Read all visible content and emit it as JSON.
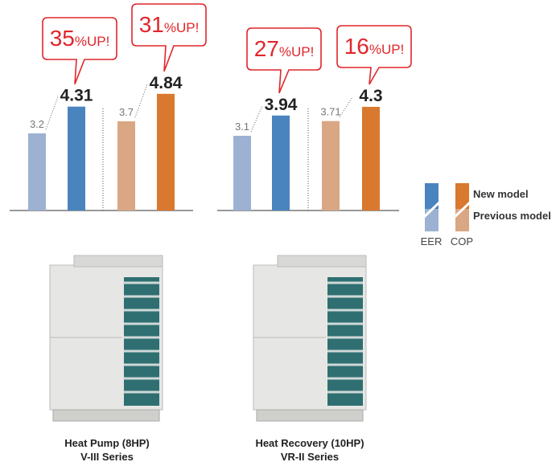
{
  "legend": {
    "items": [
      {
        "name": "New model",
        "colors": [
          "#4a84bf",
          "#d9782f"
        ]
      },
      {
        "name": "Previous model",
        "colors": [
          "#9db1d2",
          "#d9a783"
        ]
      }
    ],
    "categories": [
      "EER",
      "COP"
    ]
  },
  "chart_data": [
    {
      "type": "bar",
      "ylim": [
        0,
        5
      ],
      "caption": [
        "Heat Pump (8HP)",
        "V-III Series"
      ],
      "groups": [
        {
          "values": [
            3.2,
            4.31
          ],
          "callout": "35%UP!"
        },
        {
          "values": [
            3.7,
            4.84
          ],
          "callout": "31%UP!"
        }
      ]
    },
    {
      "type": "bar",
      "ylim": [
        0,
        5
      ],
      "caption": [
        "Heat Recovery (10HP)",
        "VR-II Series"
      ],
      "groups": [
        {
          "values": [
            3.1,
            3.94
          ],
          "callout": "27%UP!"
        },
        {
          "values": [
            3.71,
            4.3
          ],
          "callout": "16%UP!"
        }
      ]
    }
  ]
}
